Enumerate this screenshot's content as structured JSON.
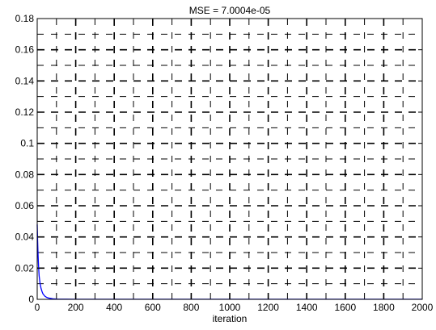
{
  "chart_data": {
    "type": "line",
    "title": "MSE =  7.0004e-05",
    "xlabel": "iteration",
    "ylabel": "",
    "xlim": [
      0,
      2000
    ],
    "ylim": [
      0,
      0.18
    ],
    "xticks": [
      0,
      200,
      400,
      600,
      800,
      1000,
      1200,
      1400,
      1600,
      1800,
      2000
    ],
    "yticks": [
      0,
      0.02,
      0.04,
      0.06,
      0.08,
      0.1,
      0.12,
      0.14,
      0.16,
      0.18
    ],
    "xtick_labels": [
      "0",
      "200",
      "400",
      "600",
      "800",
      "1000",
      "1200",
      "1400",
      "1600",
      "1800",
      "2000"
    ],
    "ytick_labels": [
      "0",
      "0.02",
      "0.04",
      "0.06",
      "0.08",
      "0.1",
      "0.12",
      "0.14",
      "0.16",
      "0.18"
    ],
    "grid": true,
    "minor_grid": true,
    "series": [
      {
        "color": "#0000ff",
        "x": [
          0,
          2,
          4,
          6,
          8,
          10,
          15,
          20,
          25,
          30,
          40,
          50,
          60,
          80,
          100,
          150,
          200,
          300,
          500,
          800,
          1200,
          1600,
          2000
        ],
        "y": [
          0.048,
          0.038,
          0.03,
          0.024,
          0.019,
          0.015,
          0.01,
          0.007,
          0.005,
          0.0035,
          0.002,
          0.0012,
          0.0008,
          0.0004,
          0.0002,
          0.0001,
          8e-05,
          7e-05,
          7e-05,
          7e-05,
          7e-05,
          7e-05,
          7e-05
        ]
      }
    ]
  }
}
